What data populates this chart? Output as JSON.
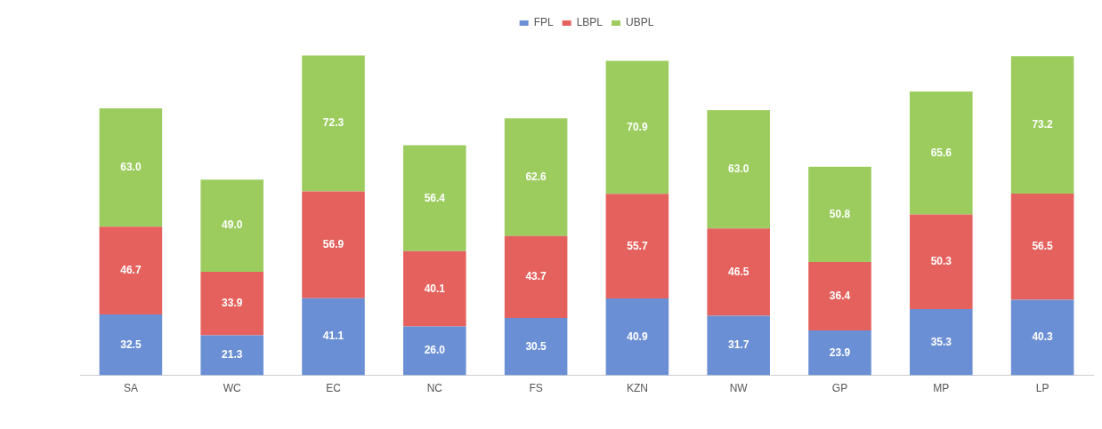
{
  "chart_data": {
    "type": "bar",
    "stacked": true,
    "categories": [
      "SA",
      "WC",
      "EC",
      "NC",
      "FS",
      "KZN",
      "NW",
      "GP",
      "MP",
      "LP"
    ],
    "series": [
      {
        "name": "FPL",
        "color": "#6b8fd4",
        "values": [
          32.5,
          21.3,
          41.1,
          26.0,
          30.5,
          40.9,
          31.7,
          23.9,
          35.3,
          40.3
        ],
        "value_labels": [
          "32.5",
          "21.3",
          "41.1",
          "26.0",
          "30.5",
          "40.9",
          "31.7",
          "23.9",
          "35.3",
          "40.3"
        ]
      },
      {
        "name": "LBPL",
        "color": "#e5615d",
        "values": [
          46.7,
          33.9,
          56.9,
          40.1,
          43.7,
          55.7,
          46.5,
          36.4,
          50.3,
          56.5
        ],
        "value_labels": [
          "46.7",
          "33.9",
          "56.9",
          "40.1",
          "43.7",
          "55.7",
          "46.5",
          "36.4",
          "50.3",
          "56.5"
        ]
      },
      {
        "name": "UBPL",
        "color": "#9ccc5e",
        "values": [
          63.0,
          49.0,
          72.3,
          56.4,
          62.6,
          70.9,
          63.0,
          50.8,
          65.6,
          73.2
        ],
        "value_labels": [
          "63.0",
          "49.0",
          "72.3",
          "56.4",
          "62.6",
          "70.9",
          "63.0",
          "50.8",
          "65.6",
          "73.2"
        ]
      }
    ],
    "legend": "top",
    "tick_labels": "x",
    "grid": false
  }
}
